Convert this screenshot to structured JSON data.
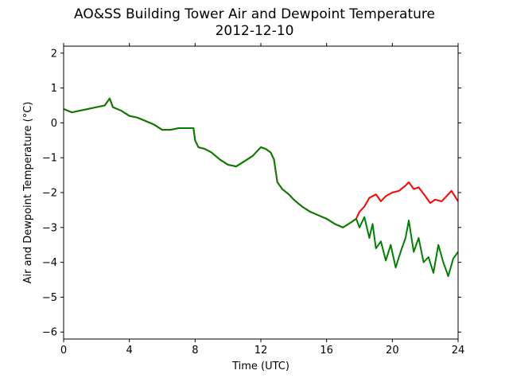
{
  "title": {
    "line1": "AO&SS Building Tower Air and Dewpoint Temperature",
    "line2": "2012-12-10"
  },
  "chart_data": {
    "type": "line",
    "xlabel": "Time (UTC)",
    "ylabel": "Air and Dewpoint Temperature (°C)",
    "xlim": [
      0,
      24
    ],
    "ylim": [
      -6.2,
      2.2
    ],
    "xticks": [
      0,
      4,
      8,
      12,
      16,
      20,
      24
    ],
    "yticks": [
      -6,
      -5,
      -4,
      -3,
      -2,
      -1,
      0,
      1,
      2
    ],
    "grid": false,
    "series": [
      {
        "color": "#ff0000",
        "x": [
          0,
          0.5,
          1,
          1.5,
          2,
          2.5,
          2.8,
          3,
          3.5,
          4,
          4.5,
          5,
          5.5,
          6,
          6.5,
          7,
          7.5,
          7.9,
          8,
          8.2,
          8.6,
          9,
          9.5,
          10,
          10.5,
          11,
          11.5,
          12,
          12.3,
          12.6,
          12.8,
          13,
          13.3,
          13.7,
          14,
          14.5,
          15,
          15.5,
          16,
          16.5,
          17,
          17.5,
          17.8,
          18,
          18.3,
          18.6,
          19,
          19.3,
          19.6,
          20,
          20.4,
          20.8,
          21,
          21.3,
          21.6,
          22,
          22.3,
          22.6,
          23,
          23.3,
          23.6,
          24
        ],
        "values": [
          0.4,
          0.3,
          0.35,
          0.4,
          0.45,
          0.5,
          0.7,
          0.45,
          0.35,
          0.2,
          0.15,
          0.05,
          -0.05,
          -0.2,
          -0.2,
          -0.15,
          -0.15,
          -0.15,
          -0.5,
          -0.7,
          -0.75,
          -0.85,
          -1.05,
          -1.2,
          -1.25,
          -1.1,
          -0.95,
          -0.7,
          -0.75,
          -0.85,
          -1.05,
          -1.7,
          -1.9,
          -2.05,
          -2.2,
          -2.4,
          -2.55,
          -2.65,
          -2.75,
          -2.9,
          -3.0,
          -2.85,
          -2.75,
          -2.55,
          -2.4,
          -2.15,
          -2.05,
          -2.25,
          -2.1,
          -2.0,
          -1.95,
          -1.8,
          -1.7,
          -1.9,
          -1.85,
          -2.1,
          -2.3,
          -2.2,
          -2.25,
          -2.1,
          -1.95,
          -2.25
        ]
      },
      {
        "color": "#008000",
        "x": [
          0,
          0.5,
          1,
          1.5,
          2,
          2.5,
          2.8,
          3,
          3.5,
          4,
          4.5,
          5,
          5.5,
          6,
          6.5,
          7,
          7.5,
          7.9,
          8,
          8.2,
          8.6,
          9,
          9.5,
          10,
          10.5,
          11,
          11.5,
          12,
          12.3,
          12.6,
          12.8,
          13,
          13.3,
          13.7,
          14,
          14.5,
          15,
          15.5,
          16,
          16.5,
          17,
          17.5,
          17.8,
          18,
          18.3,
          18.6,
          18.8,
          19,
          19.3,
          19.6,
          19.9,
          20.2,
          20.5,
          20.8,
          21,
          21.3,
          21.6,
          21.9,
          22.2,
          22.5,
          22.8,
          23.1,
          23.4,
          23.7,
          24
        ],
        "values": [
          0.4,
          0.3,
          0.35,
          0.4,
          0.45,
          0.5,
          0.7,
          0.45,
          0.35,
          0.2,
          0.15,
          0.05,
          -0.05,
          -0.2,
          -0.2,
          -0.15,
          -0.15,
          -0.15,
          -0.5,
          -0.7,
          -0.75,
          -0.85,
          -1.05,
          -1.2,
          -1.25,
          -1.1,
          -0.95,
          -0.7,
          -0.75,
          -0.85,
          -1.05,
          -1.7,
          -1.9,
          -2.05,
          -2.2,
          -2.4,
          -2.55,
          -2.65,
          -2.75,
          -2.9,
          -3.0,
          -2.85,
          -2.75,
          -3.0,
          -2.7,
          -3.3,
          -2.9,
          -3.6,
          -3.4,
          -3.95,
          -3.5,
          -4.15,
          -3.7,
          -3.3,
          -2.8,
          -3.7,
          -3.3,
          -4.0,
          -3.85,
          -4.3,
          -3.5,
          -4.0,
          -4.4,
          -3.9,
          -3.7
        ]
      }
    ]
  }
}
